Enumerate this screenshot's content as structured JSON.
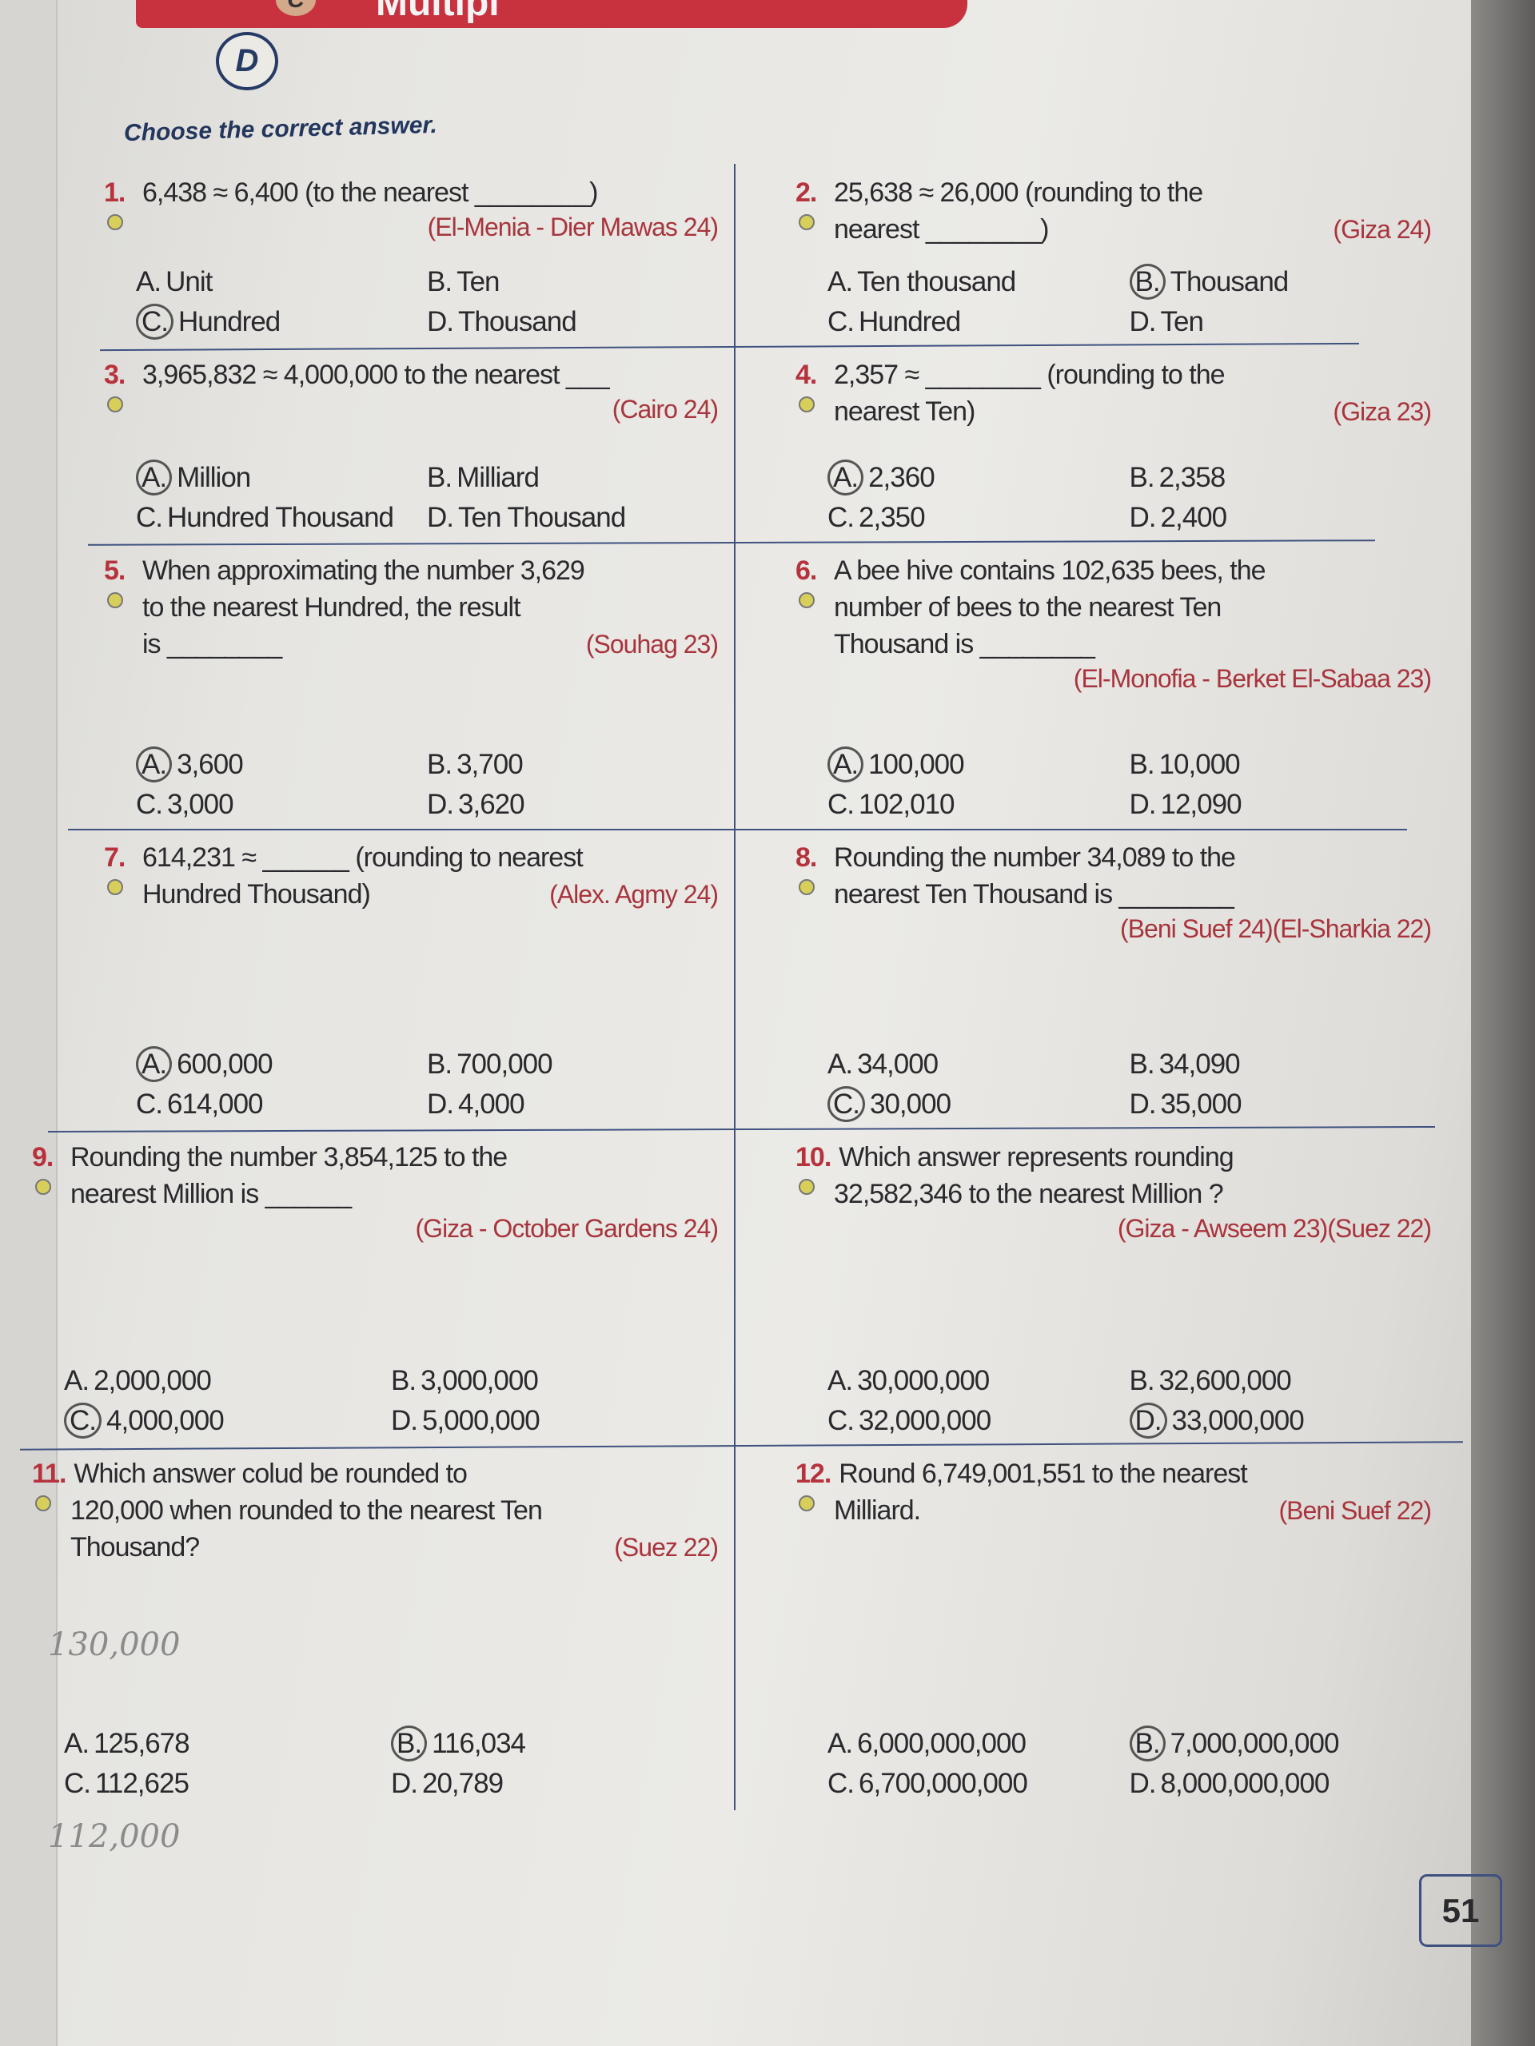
{
  "header": {
    "banner_text": "Multipl",
    "bubble_c": "C",
    "bubble_d": "D",
    "instruction": "Choose the correct answer."
  },
  "questions": [
    {
      "num": "1.",
      "lines": [
        "6,438 ≈ 6,400 (to the nearest ________)"
      ],
      "source": "(El-Menia - Dier Mawas 24)",
      "options": [
        {
          "letter": "A.",
          "text": "Unit"
        },
        {
          "letter": "B.",
          "text": "Ten"
        },
        {
          "letter": "C.",
          "text": "Hundred",
          "circled": true
        },
        {
          "letter": "D.",
          "text": "Thousand"
        }
      ]
    },
    {
      "num": "2.",
      "lines": [
        "25,638 ≈ 26,000 (rounding to the",
        "nearest ________)"
      ],
      "source": "(Giza 24)",
      "options": [
        {
          "letter": "A.",
          "text": "Ten thousand"
        },
        {
          "letter": "B.",
          "text": "Thousand",
          "circled": true
        },
        {
          "letter": "C.",
          "text": "Hundred"
        },
        {
          "letter": "D.",
          "text": "Ten"
        }
      ]
    },
    {
      "num": "3.",
      "lines": [
        "3,965,832 ≈ 4,000,000 to the nearest ___"
      ],
      "source": "(Cairo 24)",
      "options": [
        {
          "letter": "A.",
          "text": "Million",
          "circled": true
        },
        {
          "letter": "B.",
          "text": "Milliard"
        },
        {
          "letter": "C.",
          "text": "Hundred Thousand"
        },
        {
          "letter": "D.",
          "text": "Ten Thousand"
        }
      ]
    },
    {
      "num": "4.",
      "lines": [
        "2,357 ≈ ________ (rounding to the",
        "nearest Ten)"
      ],
      "source": "(Giza 23)",
      "options": [
        {
          "letter": "A.",
          "text": "2,360",
          "circled": true
        },
        {
          "letter": "B.",
          "text": "2,358"
        },
        {
          "letter": "C.",
          "text": "2,350"
        },
        {
          "letter": "D.",
          "text": "2,400"
        }
      ]
    },
    {
      "num": "5.",
      "lines": [
        "When approximating the number 3,629",
        "to the nearest Hundred, the result",
        "is ________"
      ],
      "source": "(Souhag 23)",
      "options": [
        {
          "letter": "A.",
          "text": "3,600",
          "circled": true
        },
        {
          "letter": "B.",
          "text": "3,700"
        },
        {
          "letter": "C.",
          "text": "3,000"
        },
        {
          "letter": "D.",
          "text": "3,620"
        }
      ]
    },
    {
      "num": "6.",
      "lines": [
        "A bee hive contains 102,635 bees, the",
        "number of bees to the nearest Ten",
        "Thousand is ________"
      ],
      "source": "(El-Monofia - Berket El-Sabaa 23)",
      "options": [
        {
          "letter": "A.",
          "text": "100,000",
          "circled": true
        },
        {
          "letter": "B.",
          "text": "10,000"
        },
        {
          "letter": "C.",
          "text": "102,010"
        },
        {
          "letter": "D.",
          "text": "12,090"
        }
      ]
    },
    {
      "num": "7.",
      "lines": [
        "614,231 ≈ ______ (rounding to nearest",
        "Hundred Thousand)"
      ],
      "source": "(Alex. Agmy 24)",
      "options": [
        {
          "letter": "A.",
          "text": "600,000",
          "circled": true
        },
        {
          "letter": "B.",
          "text": "700,000"
        },
        {
          "letter": "C.",
          "text": "614,000"
        },
        {
          "letter": "D.",
          "text": "4,000"
        }
      ]
    },
    {
      "num": "8.",
      "lines": [
        "Rounding the number 34,089 to the",
        "nearest Ten Thousand is ________"
      ],
      "source": "(Beni Suef 24)(El-Sharkia 22)",
      "options": [
        {
          "letter": "A.",
          "text": "34,000"
        },
        {
          "letter": "B.",
          "text": "34,090"
        },
        {
          "letter": "C.",
          "text": "30,000",
          "circled": true
        },
        {
          "letter": "D.",
          "text": "35,000"
        }
      ]
    },
    {
      "num": "9.",
      "lines": [
        "Rounding the number 3,854,125 to the",
        "nearest Million is ______"
      ],
      "source": "(Giza - October Gardens 24)",
      "options": [
        {
          "letter": "A.",
          "text": "2,000,000"
        },
        {
          "letter": "B.",
          "text": "3,000,000"
        },
        {
          "letter": "C.",
          "text": "4,000,000",
          "circled": true
        },
        {
          "letter": "D.",
          "text": "5,000,000"
        }
      ]
    },
    {
      "num": "10.",
      "lines": [
        "Which answer represents rounding",
        "32,582,346 to the nearest Million ?"
      ],
      "source": "(Giza - Awseem 23)(Suez 22)",
      "options": [
        {
          "letter": "A.",
          "text": "30,000,000"
        },
        {
          "letter": "B.",
          "text": "32,600,000"
        },
        {
          "letter": "C.",
          "text": "32,000,000"
        },
        {
          "letter": "D.",
          "text": "33,000,000",
          "circled": true
        }
      ]
    },
    {
      "num": "11.",
      "lines": [
        "Which answer colud be rounded to",
        "120,000 when rounded to the nearest Ten",
        "Thousand?"
      ],
      "source": "(Suez 22)",
      "options": [
        {
          "letter": "A.",
          "text": "125,678"
        },
        {
          "letter": "B.",
          "text": "116,034",
          "circled": true
        },
        {
          "letter": "C.",
          "text": "112,625"
        },
        {
          "letter": "D.",
          "text": "20,789"
        }
      ]
    },
    {
      "num": "12.",
      "lines": [
        "Round 6,749,001,551 to the nearest",
        "Milliard."
      ],
      "source": "(Beni Suef 22)",
      "options": [
        {
          "letter": "A.",
          "text": "6,000,000,000"
        },
        {
          "letter": "B.",
          "text": "7,000,000,000",
          "circled": true
        },
        {
          "letter": "C.",
          "text": "6,700,000,000"
        },
        {
          "letter": "D.",
          "text": "8,000,000,000"
        }
      ]
    }
  ],
  "handwriting": {
    "note_a": "130,000",
    "note_c": "112,000"
  },
  "page_number": "51",
  "colors": {
    "question_number": "#b7323d",
    "source": "#a8343d",
    "rule": "#3f5180",
    "banner": "#c8323f"
  }
}
